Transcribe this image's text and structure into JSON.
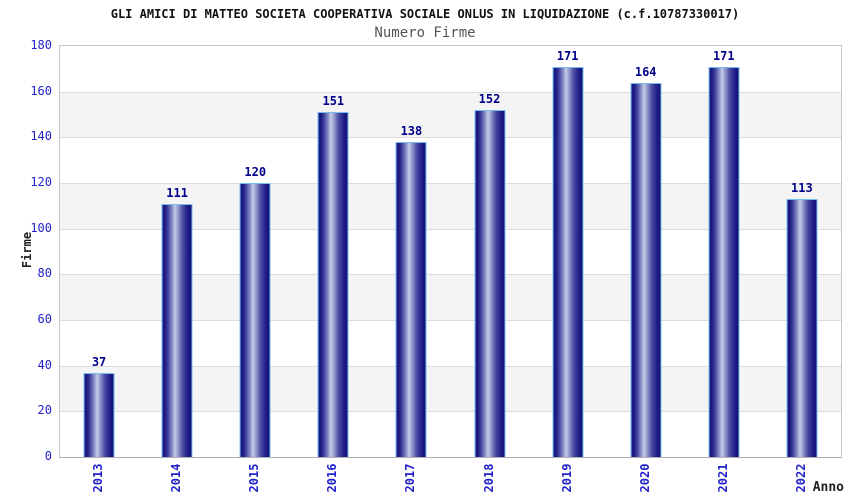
{
  "chart_data": {
    "type": "bar",
    "title": "GLI AMICI DI MATTEO SOCIETA COOPERATIVA SOCIALE ONLUS IN LIQUIDAZIONE (c.f.10787330017)",
    "subtitle": "Numero Firme",
    "xlabel": "Anno",
    "ylabel": "Firme",
    "categories": [
      "2013",
      "2014",
      "2015",
      "2016",
      "2017",
      "2018",
      "2019",
      "2020",
      "2021",
      "2022"
    ],
    "values": [
      37,
      111,
      120,
      151,
      138,
      152,
      171,
      164,
      171,
      113
    ],
    "ylim": [
      0,
      180
    ],
    "ytick_step": 20,
    "yticks": [
      0,
      20,
      40,
      60,
      80,
      100,
      120,
      140,
      160,
      180
    ],
    "grid": "horizontal-bands-alternating",
    "legend_position": "none",
    "colors": {
      "bar_dark": "#1d1d88",
      "bar_light": "#c6cde6",
      "bar_border": "#79bdec",
      "axis_tick_label": "#2222cc",
      "value_label": "#00008b",
      "title": "#111111",
      "subtitle": "#555555",
      "band_gray": "#f4f4f4",
      "gridline": "#dcdcdc",
      "background": "#ffffff"
    }
  }
}
